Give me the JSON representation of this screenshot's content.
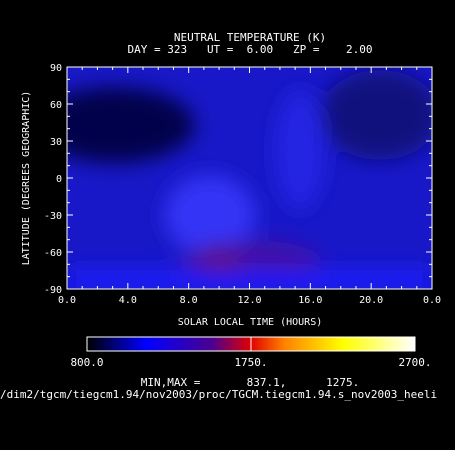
{
  "chart_data": {
    "type": "heatmap",
    "title": "NEUTRAL TEMPERATURE (K)",
    "subtitle": "DAY = 323   UT =  6.00   ZP =    2.00",
    "xlabel": "SOLAR LOCAL TIME (HOURS)",
    "ylabel": "LATITUDE (DEGREES GEOGRAPHIC)",
    "xlim": [
      0,
      24
    ],
    "ylim": [
      -90,
      90
    ],
    "x_ticks": [
      "0.0",
      "4.0",
      "8.0",
      "12.0",
      "16.0",
      "20.0",
      "0.0"
    ],
    "y_ticks": [
      "-90",
      "-60",
      "-30",
      "0",
      "30",
      "60",
      "90"
    ],
    "colorbar": {
      "range": [
        800,
        2700
      ],
      "labels": [
        "800.0",
        "1750.",
        "2700."
      ],
      "stops": [
        "#000000",
        "#0000ff",
        "#4000a0",
        "#c00000",
        "#ff0000",
        "#ff8000",
        "#ffff00",
        "#ffffff"
      ]
    },
    "min": 837.1,
    "max": 1275.0,
    "minmax_text": "MIN,MAX =       837.1,      1275.",
    "file_path": "/dim2/tgcm/tiegcm1.94/nov2003/proc/TGCM.tiegcm1.94.s_nov2003_heeli"
  }
}
